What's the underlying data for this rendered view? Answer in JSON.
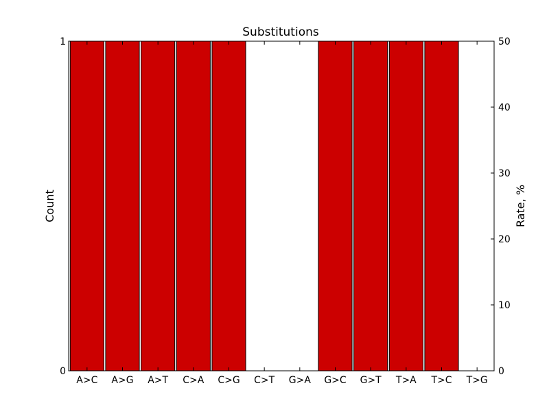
{
  "chart_data": {
    "type": "bar",
    "title": "Substitutions",
    "ylabel": "Count",
    "ylabel_right": "Rate, %",
    "xlabel": "",
    "categories": [
      "A>C",
      "A>G",
      "A>T",
      "C>A",
      "C>G",
      "C>T",
      "G>A",
      "G>C",
      "G>T",
      "T>A",
      "T>C",
      "T>G"
    ],
    "values": [
      1,
      1,
      1,
      1,
      1,
      0,
      0,
      1,
      1,
      1,
      1,
      0
    ],
    "ylim": [
      0,
      1
    ],
    "y_ticks": [
      0,
      1
    ],
    "y2lim": [
      0,
      50
    ],
    "y2_ticks": [
      0,
      10,
      20,
      30,
      40,
      50
    ],
    "grid": false,
    "bar_color": "#cc0000"
  }
}
